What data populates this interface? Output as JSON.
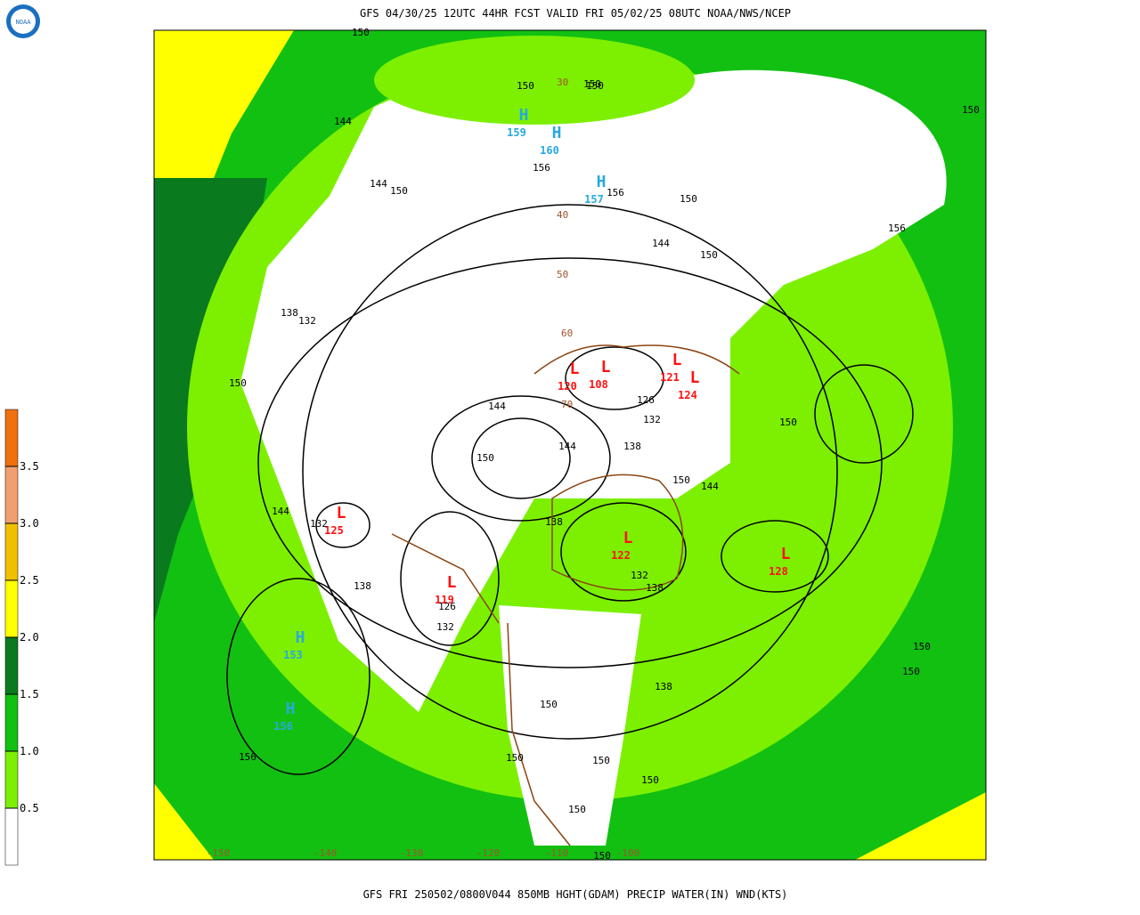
{
  "header": {
    "title": "GFS 04/30/25 12UTC 44HR FCST VALID FRI 05/02/25 08UTC NOAA/NWS/NCEP",
    "logo": "NOAA"
  },
  "footer": {
    "caption": "GFS FRI 250502/0800V044 850MB HGHT(GDAM) PRECIP WATER(IN) WND(KTS)"
  },
  "legend": {
    "bins": [
      0,
      0.5,
      1,
      1.5,
      2,
      2.5,
      3,
      3.5,
      4
    ],
    "colors": [
      "#ffffff",
      "#7cf000",
      "#12c012",
      "#0a7a1e",
      "#ffff00",
      "#f0c000",
      "#f0a070",
      "#f07010"
    ],
    "ticks": [
      0.5,
      {
        "value": 1,
        "label": "1.0"
      },
      1.5,
      {
        "value": 2,
        "label": "2.0"
      },
      2.5,
      {
        "value": 3,
        "label": "3.0"
      },
      3.5
    ]
  },
  "centers": [
    {
      "label": "H",
      "value": 159,
      "color": "#29a8e0"
    },
    {
      "label": "H",
      "value": 160,
      "color": "#29a8e0"
    },
    {
      "label": "H",
      "value": 157,
      "color": "#29a8e0"
    },
    {
      "label": "L",
      "value": 120,
      "color": "#ff1010"
    },
    {
      "label": "L",
      "value": 108,
      "color": "#ff1010"
    },
    {
      "label": "L",
      "value": 121,
      "color": "#ff1010"
    },
    {
      "label": "L",
      "value": 124,
      "color": "#ff1010"
    },
    {
      "label": "L",
      "value": 125,
      "color": "#ff1010"
    },
    {
      "label": "L",
      "value": 119,
      "color": "#ff1010"
    },
    {
      "label": "L",
      "value": 122,
      "color": "#ff1010"
    },
    {
      "label": "L",
      "value": 128,
      "color": "#ff1010"
    },
    {
      "label": "H",
      "value": 153,
      "color": "#29a8e0"
    },
    {
      "label": "H",
      "value": 156,
      "color": "#29a8e0"
    }
  ],
  "contour_labels": [
    150,
    150,
    144,
    144,
    150,
    150,
    156,
    150,
    144,
    150,
    156,
    150,
    138,
    132,
    150,
    144,
    126,
    132,
    144,
    150,
    138,
    150,
    144,
    138,
    132,
    126,
    138,
    132,
    138,
    132,
    144,
    150,
    150,
    156,
    150,
    150,
    150,
    150,
    150,
    138,
    150,
    156,
    150,
    150
  ],
  "lat_labels": [
    30,
    40,
    50,
    60,
    70
  ],
  "lon_labels": [
    -150,
    -140,
    -130,
    -120,
    -110,
    -100
  ]
}
